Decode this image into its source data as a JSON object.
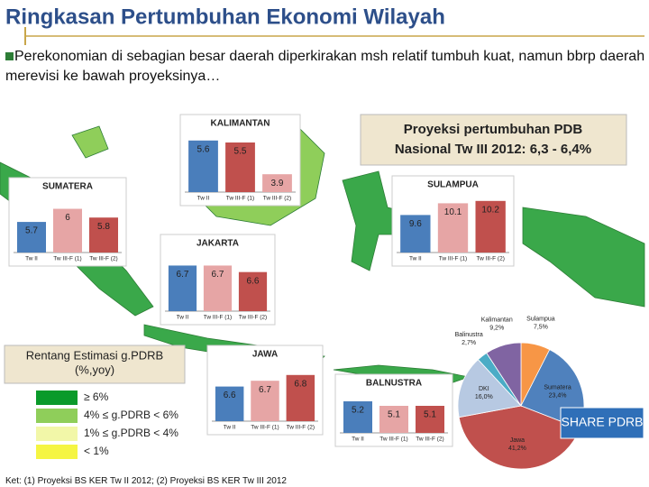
{
  "header": {
    "title": "Ringkasan Pertumbuhan Ekonomi Wilayah",
    "bullet": "Perekonomian di sebagian besar daerah diperkirakan msh relatif tumbuh kuat, namun bbrp daerah merevisi ke bawah proyeksinya…"
  },
  "projection": [
    "Proyeksi  pertumbuhan PDB",
    "Nasional Tw III 2012: 6,3 - 6,4%"
  ],
  "legend": {
    "title": [
      "Rentang Estimasi g.PDRB",
      "(%,yoy)"
    ],
    "items": [
      {
        "label": "≥ 6%",
        "color": "#0a9a2a"
      },
      {
        "label": "4% ≤ g.PDRB < 6%",
        "color": "#8fce5a"
      },
      {
        "label": "1% ≤ g.PDRB < 4%",
        "color": "#f2f7a8"
      },
      {
        "label": "< 1%",
        "color": "#f5f542"
      }
    ]
  },
  "footnote": "Ket: (1) Proyeksi BS KER Tw II 2012; (2) Proyeksi BS KER Tw III 2012",
  "chart_data": [
    {
      "type": "bar",
      "title": "KALIMANTAN",
      "categories": [
        "Tw II",
        "Tw III-F (1)",
        "Tw III-F (2)"
      ],
      "values": [
        5.6,
        5.5,
        3.9
      ],
      "colors": [
        "#4a7ebb",
        "#c0504d",
        "#e6a5a5"
      ],
      "ylim": [
        3,
        6
      ]
    },
    {
      "type": "bar",
      "title": "SUMATERA",
      "categories": [
        "Tw II",
        "Tw III-F (1)",
        "Tw III-F (2)"
      ],
      "values": [
        5.7,
        6.0,
        5.8
      ],
      "colors": [
        "#4a7ebb",
        "#e6a5a5",
        "#c0504d"
      ],
      "ylim": [
        5,
        6.3
      ]
    },
    {
      "type": "bar",
      "title": "JAKARTA",
      "categories": [
        "Tw II",
        "Tw III-F (1)",
        "Tw III-F (2)"
      ],
      "values": [
        6.7,
        6.7,
        6.6
      ],
      "colors": [
        "#4a7ebb",
        "#e6a5a5",
        "#c0504d"
      ],
      "ylim": [
        6,
        6.9
      ]
    },
    {
      "type": "bar",
      "title": "SULAMPUA",
      "categories": [
        "Tw II",
        "Tw III-F (1)",
        "Tw III-F (2)"
      ],
      "values": [
        9.6,
        10.1,
        10.2
      ],
      "colors": [
        "#4a7ebb",
        "#e6a5a5",
        "#c0504d"
      ],
      "ylim": [
        8,
        10.5
      ]
    },
    {
      "type": "bar",
      "title": "JAWA",
      "categories": [
        "Tw II",
        "Tw III-F (1)",
        "Tw III-F (2)"
      ],
      "values": [
        6.6,
        6.7,
        6.8
      ],
      "colors": [
        "#4a7ebb",
        "#e6a5a5",
        "#c0504d"
      ],
      "ylim": [
        6,
        7
      ]
    },
    {
      "type": "bar",
      "title": "BALNUSTRA",
      "categories": [
        "Tw II",
        "Tw III-F (1)",
        "Tw III-F (2)"
      ],
      "values": [
        5.2,
        5.1,
        5.1
      ],
      "colors": [
        "#4a7ebb",
        "#e6a5a5",
        "#c0504d"
      ],
      "ylim": [
        4.5,
        5.4
      ]
    },
    {
      "type": "pie",
      "title": "SHARE PDRB",
      "categories": [
        "Sulampua",
        "Sumatera",
        "Jawa",
        "DKI",
        "Balinustra",
        "Kalimantan"
      ],
      "values": [
        7.5,
        23.4,
        41.2,
        16.0,
        2.7,
        9.2
      ],
      "value_labels": [
        "7,5%",
        "23,4%",
        "41,2%",
        "16,0%",
        "2,7%",
        "9,2%"
      ],
      "colors": [
        "#f79646",
        "#4f81bd",
        "#c0504d",
        "#b7c9e2",
        "#4bacc6",
        "#8064a2"
      ]
    }
  ]
}
